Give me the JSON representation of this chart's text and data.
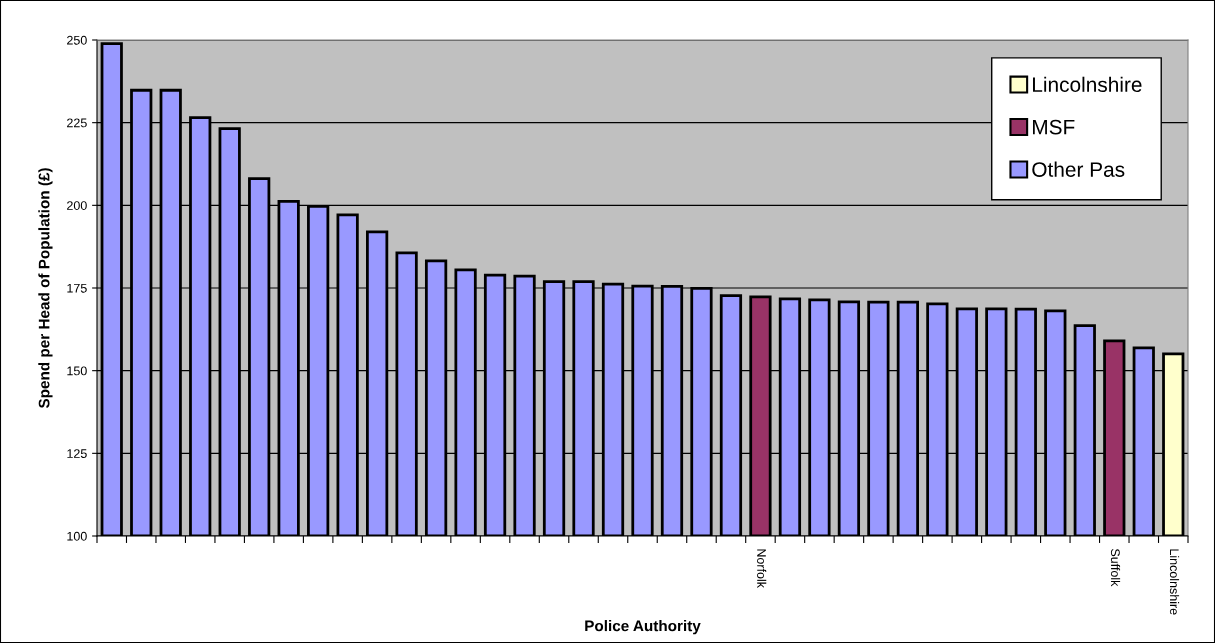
{
  "chart_data": {
    "type": "bar",
    "xlabel": "Police Authority",
    "ylabel": "Spend per Head of Population (£)",
    "categories": [
      null,
      null,
      null,
      null,
      null,
      null,
      null,
      null,
      null,
      null,
      null,
      null,
      null,
      null,
      null,
      null,
      null,
      null,
      null,
      null,
      null,
      null,
      "Norfolk",
      null,
      null,
      null,
      null,
      null,
      null,
      null,
      null,
      null,
      null,
      null,
      "Suffolk",
      null,
      "Lincolnshire"
    ],
    "series": [
      {
        "name": "Lincolnshire",
        "color": "#ffffcc",
        "values": [
          null,
          null,
          null,
          null,
          null,
          null,
          null,
          null,
          null,
          null,
          null,
          null,
          null,
          null,
          null,
          null,
          null,
          null,
          null,
          null,
          null,
          null,
          null,
          null,
          null,
          null,
          null,
          null,
          null,
          null,
          null,
          null,
          null,
          null,
          null,
          null,
          155.1
        ]
      },
      {
        "name": "MSF",
        "color": "#993366",
        "values": [
          null,
          null,
          null,
          null,
          null,
          null,
          null,
          null,
          null,
          null,
          null,
          null,
          null,
          null,
          null,
          null,
          null,
          null,
          null,
          null,
          null,
          null,
          172.3,
          null,
          null,
          null,
          null,
          null,
          null,
          null,
          null,
          null,
          null,
          null,
          159.0,
          null,
          null
        ]
      },
      {
        "name": "Other Pas",
        "color": "#9999ff",
        "values": [
          248.9,
          234.8,
          234.8,
          226.5,
          223.2,
          208.1,
          201.2,
          199.7,
          197.1,
          192.0,
          185.6,
          183.2,
          180.5,
          178.9,
          178.6,
          176.9,
          176.9,
          176.2,
          175.6,
          175.5,
          174.9,
          172.7,
          null,
          171.7,
          171.4,
          170.8,
          170.7,
          170.7,
          170.2,
          168.7,
          168.7,
          168.6,
          168.1,
          163.6,
          null,
          156.9,
          null
        ]
      }
    ],
    "ylim": [
      100,
      250
    ],
    "yticks": [
      100,
      125,
      150,
      175,
      200,
      225,
      250
    ],
    "grid": "y",
    "legend": "top right"
  }
}
